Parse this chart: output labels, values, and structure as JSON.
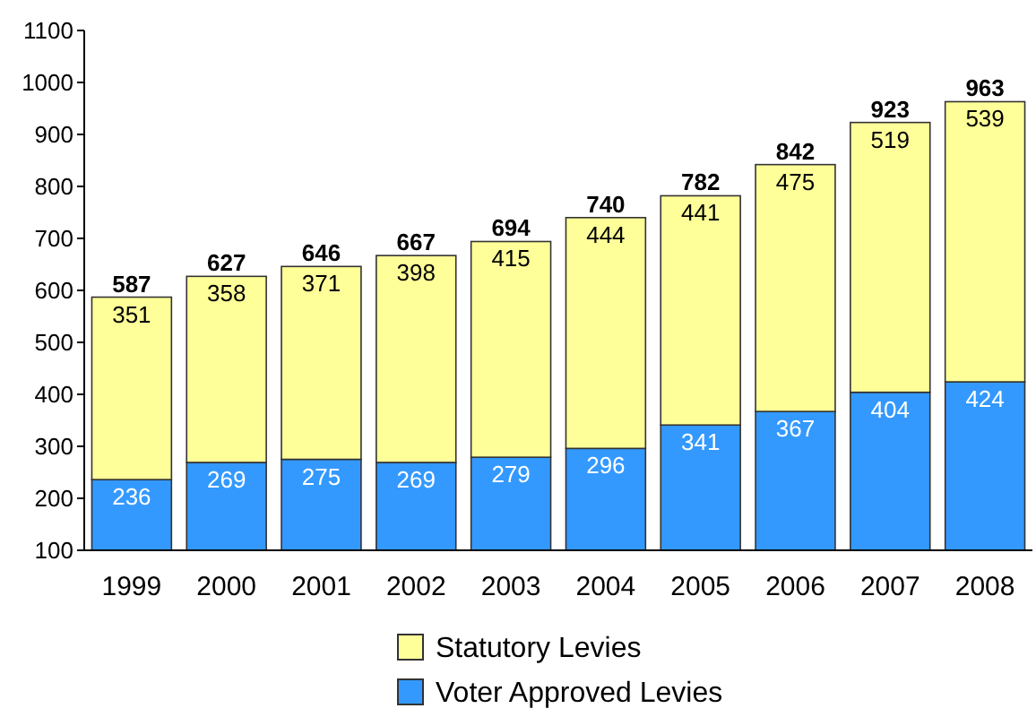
{
  "chart_data": {
    "type": "bar",
    "stacked": true,
    "categories": [
      "1999",
      "2000",
      "2001",
      "2002",
      "2003",
      "2004",
      "2005",
      "2006",
      "2007",
      "2008"
    ],
    "series": [
      {
        "name": "Voter Approved Levies",
        "color": "#3399ff",
        "values": [
          236,
          269,
          275,
          269,
          279,
          296,
          341,
          367,
          404,
          424
        ]
      },
      {
        "name": "Statutory Levies",
        "color": "#ffff99",
        "values": [
          351,
          358,
          371,
          398,
          415,
          444,
          441,
          475,
          519,
          539
        ]
      }
    ],
    "totals": [
      "587",
      "627",
      "646",
      "667",
      "694",
      "740",
      "782",
      "842",
      "923",
      "963"
    ],
    "data_labels": true,
    "ylim": [
      100,
      1100
    ],
    "yticks": [
      100,
      200,
      300,
      400,
      500,
      600,
      700,
      800,
      900,
      1000,
      1100
    ],
    "grid": false,
    "legend": "bottom"
  }
}
